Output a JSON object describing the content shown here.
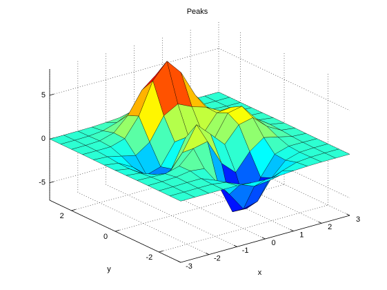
{
  "chart_data": {
    "type": "surface",
    "title": "Peaks",
    "xlabel": "x",
    "ylabel": "y",
    "x": [
      -3,
      -2.5,
      -2,
      -1.5,
      -1,
      -0.5,
      0,
      0.5,
      1,
      1.5,
      2,
      2.5,
      3
    ],
    "y": [
      -3,
      -2.5,
      -2,
      -1.5,
      -1,
      -0.5,
      0,
      0.5,
      1,
      1.5,
      2,
      2.5,
      3
    ],
    "z": [
      [
        0,
        0,
        0,
        0,
        -0.03,
        -0.14,
        -0.24,
        -0.22,
        -0.11,
        -0.03,
        0,
        0,
        0
      ],
      [
        0,
        0,
        0.01,
        0,
        -0.23,
        -0.92,
        -1.57,
        -1.41,
        -0.69,
        -0.18,
        -0.03,
        0,
        0
      ],
      [
        0,
        0.01,
        0.05,
        0.05,
        -0.59,
        -2.63,
        -4.75,
        -4.34,
        -2.1,
        -0.53,
        -0.06,
        0,
        0
      ],
      [
        0,
        0.01,
        0.08,
        0.33,
        0.15,
        -2.19,
        -5.68,
        -5.76,
        -2.63,
        -0.44,
        0.04,
        0.03,
        0
      ],
      [
        -0.01,
        -0.06,
        -0.13,
        0.3,
        1.86,
        2.22,
        -0.72,
        -2.22,
        -0.27,
        0.88,
        0.5,
        0.11,
        0.01
      ],
      [
        -0.03,
        -0.2,
        -0.8,
        -1.21,
        0.8,
        3.55,
        2,
        0.39,
        2.2,
        2.56,
        1.12,
        0.24,
        0.03
      ],
      [
        -0.04,
        -0.3,
        -1.33,
        -2.77,
        -1.65,
        1.48,
        0.98,
        0.37,
        2.94,
        3.27,
        1.41,
        0.3,
        0.03
      ],
      [
        -0.03,
        -0.25,
        -1.12,
        -2.49,
        -2,
        0.39,
        0.46,
        0.38,
        2.38,
        2.56,
        1.09,
        0.23,
        0.03
      ],
      [
        -0.01,
        -0.11,
        -0.48,
        -0.86,
        0.23,
        2.79,
        3.69,
        2.93,
        2.43,
        1.58,
        0.58,
        0.11,
        0.01
      ],
      [
        0,
        -0.02,
        -0.01,
        0.48,
        2.61,
        6.2,
        8,
        6.25,
        3.25,
        1.19,
        0.29,
        0.05,
        0
      ],
      [
        0,
        0.01,
        0.08,
        0.55,
        2.09,
        4.55,
        5.85,
        4.56,
        2.21,
        0.68,
        0.13,
        0.02,
        0
      ],
      [
        0,
        0,
        0.03,
        0.19,
        0.69,
        1.47,
        1.88,
        1.47,
        0.7,
        0.2,
        0.04,
        0,
        0
      ],
      [
        0,
        0,
        0.01,
        0.03,
        0.11,
        0.23,
        0.3,
        0.23,
        0.11,
        0.03,
        0.01,
        0,
        0
      ]
    ],
    "xlim": [
      -3,
      3
    ],
    "ylim": [
      -3,
      3
    ],
    "zlim": [
      -7,
      8
    ],
    "xticks": [
      -3,
      -2,
      -1,
      0,
      1,
      2,
      3
    ],
    "yticks": [
      -2,
      0,
      2
    ],
    "zticks": [
      -5,
      0,
      5
    ],
    "grid": true,
    "colormap": "jet",
    "edge_color": "#000000"
  }
}
